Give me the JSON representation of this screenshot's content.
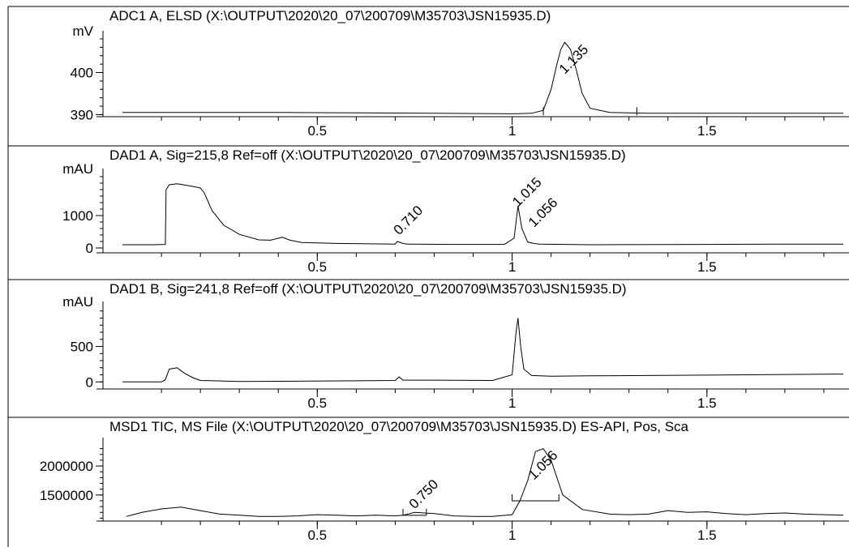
{
  "chart_data": [
    {
      "type": "line",
      "title": "ADC1 A, ELSD (X:\\OUTPUT\\2020\\20_07\\200709\\M35703\\JSN15935.D)",
      "ylabel": "mV",
      "xlim": [
        -0.05,
        1.85
      ],
      "ylim": [
        389.5,
        408
      ],
      "yticks": [
        390,
        400
      ],
      "xticks": [
        0.5,
        1,
        1.5
      ],
      "xtick_labels": [
        "0.5",
        "1",
        "1.5"
      ],
      "baseline_hidden": false,
      "series": [
        {
          "x": [
            0.0,
            0.2,
            0.4,
            0.6,
            0.8,
            1.0,
            1.05,
            1.08,
            1.1,
            1.115,
            1.125,
            1.135,
            1.15,
            1.165,
            1.18,
            1.2,
            1.25,
            1.35,
            1.5,
            1.7,
            1.85
          ],
          "y": [
            390.5,
            390.5,
            390.5,
            390.4,
            390.3,
            390.2,
            390.3,
            391.0,
            396.0,
            402.0,
            405.5,
            407.2,
            405.5,
            400.5,
            395.0,
            391.5,
            390.5,
            390.3,
            390.3,
            390.3,
            390.3
          ]
        }
      ],
      "peaks": [
        {
          "label": "1.135",
          "x": 1.135,
          "y": 399.5
        }
      ],
      "integration_marks": [
        {
          "x": 1.08,
          "y": 390.2
        },
        {
          "x": 1.32,
          "y": 390.2
        }
      ]
    },
    {
      "type": "line",
      "title": "DAD1 A, Sig=215,8 Ref=off (X:\\OUTPUT\\2020\\20_07\\200709\\M35703\\JSN15935.D)",
      "ylabel": "mAU",
      "xlim": [
        -0.05,
        1.85
      ],
      "ylim": [
        -150,
        2200
      ],
      "yticks": [
        0,
        1000
      ],
      "xticks": [
        0.5,
        1,
        1.5
      ],
      "xtick_labels": [
        "0.5",
        "1",
        "1.5"
      ],
      "series": [
        {
          "x": [
            0.0,
            0.08,
            0.11,
            0.112,
            0.12,
            0.14,
            0.16,
            0.18,
            0.2,
            0.21,
            0.23,
            0.26,
            0.3,
            0.35,
            0.38,
            0.4,
            0.41,
            0.43,
            0.46,
            0.55,
            0.7,
            0.705,
            0.72,
            0.73,
            0.85,
            0.98,
            1.005,
            1.015,
            1.025,
            1.04,
            1.056,
            1.07,
            1.2,
            1.5,
            1.7,
            1.85
          ],
          "y": [
            100,
            100,
            110,
            1800,
            1950,
            1980,
            1940,
            1900,
            1850,
            1700,
            1150,
            700,
            420,
            250,
            240,
            300,
            330,
            240,
            170,
            140,
            120,
            200,
            140,
            120,
            110,
            110,
            300,
            1300,
            600,
            180,
            140,
            120,
            100,
            110,
            120,
            120
          ]
        }
      ],
      "peaks": [
        {
          "label": "0.710",
          "x": 0.71,
          "y": 380
        },
        {
          "label": "1.015",
          "x": 1.015,
          "y": 1250
        },
        {
          "label": "1.056",
          "x": 1.056,
          "y": 620
        }
      ]
    },
    {
      "type": "line",
      "title": "DAD1 B, Sig=241,8 Ref=off (X:\\OUTPUT\\2020\\20_07\\200709\\M35703\\JSN15935.D)",
      "ylabel": "mAU",
      "xlim": [
        -0.05,
        1.85
      ],
      "ylim": [
        -100,
        1020
      ],
      "yticks": [
        0,
        500
      ],
      "xticks": [
        0.5,
        1,
        1.5
      ],
      "xtick_labels": [
        "0.5",
        "1",
        "1.5"
      ],
      "series": [
        {
          "x": [
            0.0,
            0.1,
            0.11,
            0.12,
            0.14,
            0.16,
            0.18,
            0.2,
            0.3,
            0.45,
            0.6,
            0.7,
            0.71,
            0.72,
            0.8,
            0.95,
            1.0,
            1.01,
            1.015,
            1.022,
            1.03,
            1.05,
            1.1,
            1.2,
            1.5,
            1.7,
            1.85
          ],
          "y": [
            0,
            0,
            30,
            180,
            200,
            120,
            60,
            20,
            5,
            10,
            15,
            20,
            70,
            25,
            25,
            20,
            100,
            700,
            900,
            500,
            180,
            90,
            80,
            85,
            95,
            105,
            110
          ]
        }
      ],
      "peaks": []
    },
    {
      "type": "line",
      "title": "MSD1 TIC, MS File (X:\\OUTPUT\\2020\\20_07\\200709\\M35703\\JSN15935.D)   ES-API, Pos, Sca",
      "ylabel": "",
      "xlim": [
        -0.05,
        1.85
      ],
      "ylim": [
        1050000,
        2350000
      ],
      "yticks": [
        1500000,
        2000000
      ],
      "xticks": [
        0.5,
        1,
        1.5
      ],
      "xtick_labels": [
        "0.5",
        "1",
        "1.5"
      ],
      "series": [
        {
          "x": [
            0.01,
            0.05,
            0.1,
            0.15,
            0.2,
            0.25,
            0.3,
            0.35,
            0.4,
            0.45,
            0.5,
            0.55,
            0.6,
            0.65,
            0.7,
            0.72,
            0.75,
            0.8,
            0.85,
            0.9,
            0.95,
            1.0,
            1.02,
            1.04,
            1.06,
            1.08,
            1.1,
            1.13,
            1.18,
            1.25,
            1.3,
            1.35,
            1.4,
            1.45,
            1.5,
            1.55,
            1.6,
            1.65,
            1.7,
            1.75,
            1.8,
            1.85
          ],
          "y": [
            1130000,
            1200000,
            1260000,
            1290000,
            1230000,
            1170000,
            1150000,
            1130000,
            1130000,
            1140000,
            1160000,
            1150000,
            1140000,
            1150000,
            1140000,
            1150000,
            1200000,
            1180000,
            1140000,
            1130000,
            1130000,
            1160000,
            1400000,
            1750000,
            2250000,
            2300000,
            2100000,
            1500000,
            1250000,
            1170000,
            1160000,
            1170000,
            1230000,
            1200000,
            1210000,
            1180000,
            1160000,
            1180000,
            1190000,
            1170000,
            1160000,
            1150000
          ]
        }
      ],
      "peaks": [
        {
          "label": "0.750",
          "x": 0.75,
          "y": 1250000
        },
        {
          "label": "1.056",
          "x": 1.056,
          "y": 1750000
        }
      ],
      "integration_boxes": [
        {
          "x0": 0.72,
          "x1": 0.78,
          "y": 1150000
        },
        {
          "x0": 1.0,
          "x1": 1.12,
          "y": 1400000
        }
      ]
    }
  ]
}
